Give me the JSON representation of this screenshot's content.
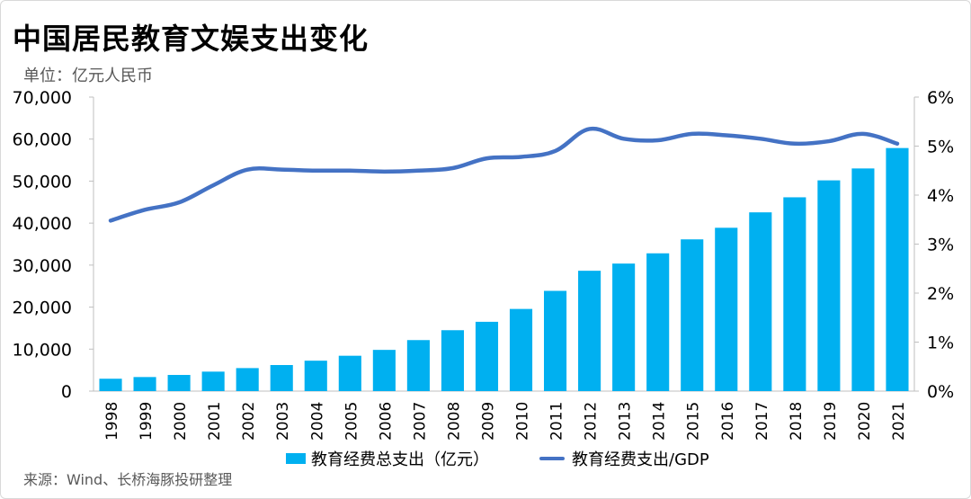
{
  "title": "中国居民教育文娱支出变化",
  "unit_label": "单位：亿元人民币",
  "source": "来源：Wind、长桥海豚投研整理",
  "colors": {
    "bar": "#00b0f0",
    "line": "#4472c4",
    "axis": "#bfbfbf",
    "text": "#000000",
    "muted": "#595959"
  },
  "chart_data": {
    "type": "bar",
    "categories": [
      "1998",
      "1999",
      "2000",
      "2001",
      "2002",
      "2003",
      "2004",
      "2005",
      "2006",
      "2007",
      "2008",
      "2009",
      "2010",
      "2011",
      "2012",
      "2013",
      "2014",
      "2015",
      "2016",
      "2017",
      "2018",
      "2019",
      "2020",
      "2021"
    ],
    "series": [
      {
        "name": "教育经费总支出（亿元）",
        "type": "bar",
        "axis": "left",
        "values": [
          2949,
          3349,
          3849,
          4638,
          5480,
          6208,
          7243,
          8419,
          9815,
          12148,
          14501,
          16503,
          19562,
          23869,
          28655,
          30365,
          32806,
          36129,
          38888,
          42562,
          46143,
          50178,
          53014,
          57873
        ]
      },
      {
        "name": "教育经费支出/GDP",
        "type": "line",
        "axis": "right",
        "values": [
          3.48,
          3.7,
          3.85,
          4.2,
          4.52,
          4.52,
          4.5,
          4.5,
          4.48,
          4.5,
          4.55,
          4.75,
          4.78,
          4.9,
          5.35,
          5.15,
          5.12,
          5.25,
          5.22,
          5.15,
          5.05,
          5.1,
          5.25,
          5.05
        ]
      }
    ],
    "yleft": {
      "min": 0,
      "max": 70000,
      "ticks": [
        "0",
        "10,000",
        "20,000",
        "30,000",
        "40,000",
        "50,000",
        "60,000",
        "70,000"
      ]
    },
    "yright": {
      "min": 0,
      "max": 6,
      "ticks": [
        "0%",
        "1%",
        "2%",
        "3%",
        "4%",
        "5%",
        "6%"
      ]
    },
    "legend_position": "bottom",
    "grid": false
  }
}
